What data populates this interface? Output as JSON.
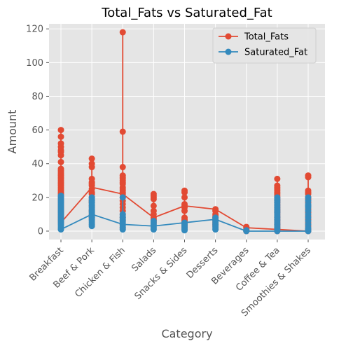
{
  "chart_data": {
    "type": "line",
    "title": "Total_Fats vs Saturated_Fat",
    "xlabel": "Category",
    "ylabel": "Amount",
    "ylim": [
      -5,
      123
    ],
    "yticks": [
      0,
      20,
      40,
      60,
      80,
      100,
      120
    ],
    "grid": true,
    "legend_position": "top-right",
    "categories": [
      "Breakfast",
      "Beef & Pork",
      "Chicken & Fish",
      "Salads",
      "Snacks & Sides",
      "Desserts",
      "Beverages",
      "Coffee & Tea",
      "Smoothies & Shakes"
    ],
    "series": [
      {
        "name": "Total_Fats",
        "color": "#E24A33",
        "line_values": [
          5,
          26,
          22,
          8,
          15,
          13,
          2,
          1,
          0
        ],
        "points": [
          [
            5,
            6,
            7,
            8,
            9,
            10,
            11,
            12,
            13,
            14,
            15,
            16,
            17,
            18,
            19,
            20,
            21,
            22,
            23,
            24,
            25,
            26,
            27,
            28,
            29,
            30,
            31,
            32,
            33,
            34,
            35,
            36,
            37,
            41,
            45,
            47,
            48,
            50,
            52,
            56,
            60
          ],
          [
            8,
            10,
            12,
            15,
            17,
            18,
            20,
            22,
            23,
            25,
            27,
            28,
            29,
            31,
            38,
            40,
            43
          ],
          [
            2,
            4,
            6,
            8,
            10,
            12,
            14,
            16,
            18,
            20,
            22,
            23,
            24,
            25,
            26,
            28,
            29,
            30,
            31,
            32,
            33,
            38,
            59,
            118
          ],
          [
            5,
            6,
            7,
            8,
            10,
            12,
            15,
            19,
            20,
            21,
            22
          ],
          [
            2,
            3,
            4,
            5,
            6,
            7,
            8,
            12,
            14,
            15,
            16,
            20,
            23,
            24
          ],
          [
            3,
            4,
            5,
            6,
            7,
            8,
            9,
            10,
            12,
            13
          ],
          [
            0,
            0.5,
            1,
            2,
            2.5
          ],
          [
            0,
            1,
            2,
            3,
            4,
            5,
            6,
            7,
            8,
            9,
            10,
            11,
            12,
            13,
            14,
            15,
            16,
            17,
            18,
            19,
            20,
            21,
            22,
            23,
            24,
            25,
            26,
            27,
            31
          ],
          [
            0,
            1,
            3,
            5,
            7,
            9,
            11,
            13,
            15,
            17,
            19,
            20,
            22,
            23,
            24,
            32,
            33
          ]
        ]
      },
      {
        "name": "Saturated_Fat",
        "color": "#348ABD",
        "line_values": [
          1,
          10,
          4,
          3,
          5,
          7,
          0,
          0,
          0
        ],
        "points": [
          [
            1,
            2,
            3,
            4,
            5,
            6,
            7,
            8,
            9,
            10,
            11,
            12,
            13,
            14,
            15,
            16,
            17,
            18,
            19,
            20,
            21
          ],
          [
            3,
            4,
            5,
            6,
            7,
            8,
            9,
            10,
            11,
            12,
            13,
            14,
            15,
            16,
            17,
            18,
            19,
            20
          ],
          [
            1,
            2,
            3,
            4,
            5,
            6,
            7,
            8,
            9,
            10,
            20
          ],
          [
            1,
            2,
            3,
            4,
            5,
            6
          ],
          [
            0.5,
            1,
            2,
            3,
            4,
            5
          ],
          [
            1,
            2,
            3,
            4,
            5,
            6,
            7,
            8
          ],
          [
            0,
            0.2,
            0.5
          ],
          [
            0,
            1,
            2,
            3,
            4,
            5,
            6,
            7,
            8,
            9,
            10,
            11,
            12,
            13,
            14,
            15,
            16,
            17,
            18,
            19,
            20
          ],
          [
            0,
            1,
            2,
            4,
            6,
            8,
            10,
            12,
            14,
            15,
            16,
            18,
            20
          ]
        ]
      }
    ]
  }
}
